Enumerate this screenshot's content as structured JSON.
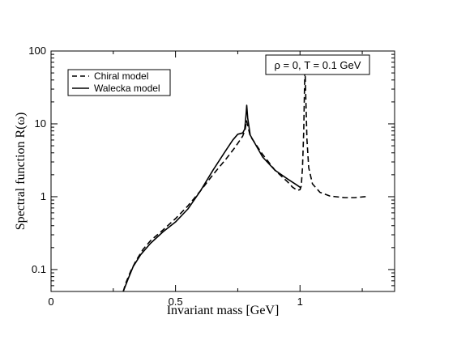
{
  "chart_data": {
    "type": "line",
    "title": "",
    "xlabel": "Invariant mass [GeV]",
    "ylabel": "Spectral function R(ω)",
    "xlim": [
      0,
      1.38
    ],
    "ylim": [
      0.05,
      100
    ],
    "yscale": "log",
    "grid": false,
    "legend_position": "top-left",
    "annotation": "ρ = 0, T = 0.1 GeV",
    "x_ticks": [
      {
        "value": 0,
        "label": "0"
      },
      {
        "value": 0.5,
        "label": "0.5"
      },
      {
        "value": 1,
        "label": "1"
      }
    ],
    "y_ticks": [
      {
        "value": 0.1,
        "label": "0.1"
      },
      {
        "value": 1,
        "label": "1"
      },
      {
        "value": 10,
        "label": "10"
      },
      {
        "value": 100,
        "label": "100"
      }
    ],
    "series": [
      {
        "name": "Chiral model",
        "style": "dashed",
        "color": "#000000",
        "points": [
          [
            0.29,
            0.05
          ],
          [
            0.3,
            0.065
          ],
          [
            0.32,
            0.095
          ],
          [
            0.34,
            0.13
          ],
          [
            0.37,
            0.19
          ],
          [
            0.4,
            0.25
          ],
          [
            0.45,
            0.35
          ],
          [
            0.5,
            0.5
          ],
          [
            0.55,
            0.75
          ],
          [
            0.6,
            1.2
          ],
          [
            0.65,
            2.0
          ],
          [
            0.7,
            3.2
          ],
          [
            0.74,
            4.8
          ],
          [
            0.77,
            6.8
          ],
          [
            0.78,
            8.5
          ],
          [
            0.785,
            11.0
          ],
          [
            0.79,
            9.5
          ],
          [
            0.8,
            6.8
          ],
          [
            0.85,
            3.8
          ],
          [
            0.9,
            2.3
          ],
          [
            0.95,
            1.6
          ],
          [
            0.97,
            1.35
          ],
          [
            0.99,
            1.22
          ],
          [
            1.0,
            1.25
          ],
          [
            1.005,
            1.4
          ],
          [
            1.01,
            2.5
          ],
          [
            1.015,
            8.0
          ],
          [
            1.018,
            30.0
          ],
          [
            1.02,
            60.0
          ],
          [
            1.023,
            25.0
          ],
          [
            1.028,
            6.0
          ],
          [
            1.035,
            2.5
          ],
          [
            1.05,
            1.5
          ],
          [
            1.08,
            1.15
          ],
          [
            1.12,
            1.02
          ],
          [
            1.18,
            0.97
          ],
          [
            1.22,
            0.97
          ],
          [
            1.26,
            1.0
          ],
          [
            1.27,
            1.01
          ]
        ]
      },
      {
        "name": "Walecka model",
        "style": "solid",
        "color": "#000000",
        "points": [
          [
            0.29,
            0.05
          ],
          [
            0.31,
            0.075
          ],
          [
            0.33,
            0.11
          ],
          [
            0.36,
            0.16
          ],
          [
            0.4,
            0.23
          ],
          [
            0.45,
            0.33
          ],
          [
            0.5,
            0.45
          ],
          [
            0.55,
            0.68
          ],
          [
            0.6,
            1.2
          ],
          [
            0.65,
            2.3
          ],
          [
            0.7,
            4.2
          ],
          [
            0.73,
            6.0
          ],
          [
            0.75,
            7.2
          ],
          [
            0.77,
            7.5
          ],
          [
            0.778,
            8.5
          ],
          [
            0.783,
            13.0
          ],
          [
            0.786,
            18.0
          ],
          [
            0.79,
            12.0
          ],
          [
            0.8,
            7.0
          ],
          [
            0.85,
            3.5
          ],
          [
            0.9,
            2.3
          ],
          [
            0.95,
            1.75
          ],
          [
            0.98,
            1.5
          ],
          [
            1.0,
            1.35
          ],
          [
            1.003,
            1.32
          ]
        ]
      }
    ]
  }
}
